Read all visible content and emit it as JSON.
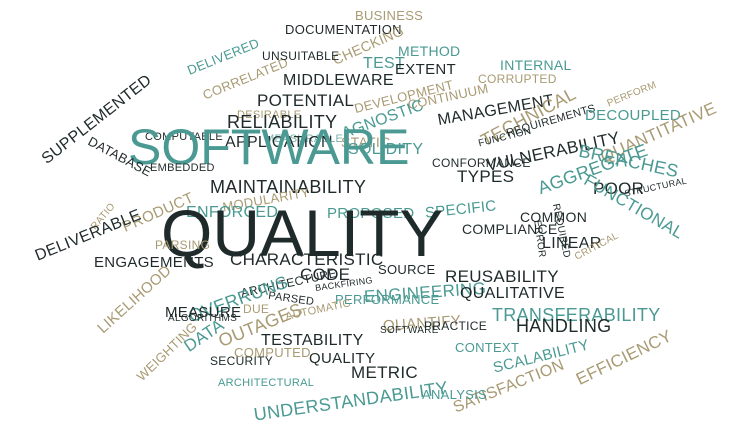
{
  "palette": {
    "teal": "#4a9a93",
    "dark": "#1f2a2a",
    "tan": "#a89a72",
    "light": "#79b3ad"
  },
  "words": [
    {
      "id": "w0",
      "text": "BUSINESS",
      "color": "tan"
    },
    {
      "id": "w1",
      "text": "DOCUMENTATION",
      "color": "dark"
    },
    {
      "id": "w2",
      "text": "CHECKING",
      "color": "tan"
    },
    {
      "id": "w3",
      "text": "DELIVERED",
      "color": "teal"
    },
    {
      "id": "w4",
      "text": "CORRELATED",
      "color": "tan"
    },
    {
      "id": "w5",
      "text": "UNSUITABLE",
      "color": "dark"
    },
    {
      "id": "w6",
      "text": "METHOD",
      "color": "teal"
    },
    {
      "id": "w7",
      "text": "TEST",
      "color": "teal"
    },
    {
      "id": "w8",
      "text": "EXTENT",
      "color": "dark"
    },
    {
      "id": "w9",
      "text": "INTERNAL",
      "color": "teal"
    },
    {
      "id": "w10",
      "text": "MIDDLEWARE",
      "color": "dark"
    },
    {
      "id": "w11",
      "text": "CORRUPTED",
      "color": "tan"
    },
    {
      "id": "w12",
      "text": "POTENTIAL",
      "color": "dark"
    },
    {
      "id": "w13",
      "text": "DEVELOPMENT",
      "color": "tan"
    },
    {
      "id": "w14",
      "text": "CONTINUUM",
      "color": "tan"
    },
    {
      "id": "w15",
      "text": "DESIRABLE",
      "color": "tan"
    },
    {
      "id": "w16",
      "text": "MANAGEMENT",
      "color": "dark"
    },
    {
      "id": "w17",
      "text": "PERFORM",
      "color": "tan"
    },
    {
      "id": "w18",
      "text": "RELIABILITY",
      "color": "dark"
    },
    {
      "id": "w19",
      "text": "SUPPLEMENTED",
      "color": "dark"
    },
    {
      "id": "w20",
      "text": "COMPUTABLE",
      "color": "dark"
    },
    {
      "id": "w21",
      "text": "MEASURABLE",
      "color": "light"
    },
    {
      "id": "w22",
      "text": "STATIC",
      "color": "tan"
    },
    {
      "id": "w23",
      "text": "AGNOSTIC",
      "color": "teal"
    },
    {
      "id": "w24",
      "text": "TECHNICAL",
      "color": "tan"
    },
    {
      "id": "w25",
      "text": "REQUIREMENTS",
      "color": "dark"
    },
    {
      "id": "w26",
      "text": "DECOUPLED",
      "color": "teal"
    },
    {
      "id": "w27",
      "text": "APPLICATION",
      "color": "dark"
    },
    {
      "id": "w28",
      "text": "SOLIDITY",
      "color": "teal"
    },
    {
      "id": "w29",
      "text": "FUNCTION",
      "color": "dark"
    },
    {
      "id": "w30",
      "text": "VULNERABILITY",
      "color": "dark"
    },
    {
      "id": "w31",
      "text": "QUANTITATIVE",
      "color": "tan"
    },
    {
      "id": "w32",
      "text": "SOFTWARE",
      "color": "teal"
    },
    {
      "id": "w33",
      "text": "CONFORMANCE",
      "color": "dark"
    },
    {
      "id": "w34",
      "text": "DATABASE",
      "color": "dark"
    },
    {
      "id": "w35",
      "text": "EMBEDDED",
      "color": "dark"
    },
    {
      "id": "w36",
      "text": "TYPES",
      "color": "dark"
    },
    {
      "id": "w37",
      "text": "BREACHES",
      "color": "teal"
    },
    {
      "id": "w38",
      "text": "AGGREGATE",
      "color": "teal"
    },
    {
      "id": "w39",
      "text": "MAINTAINABILITY",
      "color": "dark"
    },
    {
      "id": "w40",
      "text": "MODULARITY",
      "color": "tan"
    },
    {
      "id": "w41",
      "text": "POOR",
      "color": "dark"
    },
    {
      "id": "w42",
      "text": "STRUCTURAL",
      "color": "dark"
    },
    {
      "id": "w43",
      "text": "PRODUCT",
      "color": "tan"
    },
    {
      "id": "w44",
      "text": "ENFORCED",
      "color": "teal"
    },
    {
      "id": "w45",
      "text": "PROPOSED",
      "color": "teal"
    },
    {
      "id": "w46",
      "text": "SPECIFIC",
      "color": "teal"
    },
    {
      "id": "w47",
      "text": "FUNCTIONAL",
      "color": "teal"
    },
    {
      "id": "w48",
      "text": "COMMON",
      "color": "dark"
    },
    {
      "id": "w49",
      "text": "QUALITY",
      "color": "dark"
    },
    {
      "id": "w50",
      "text": "COMPLIANCE",
      "color": "dark"
    },
    {
      "id": "w51",
      "text": "RATIO",
      "color": "tan"
    },
    {
      "id": "w52",
      "text": "DELIVERABLE",
      "color": "dark"
    },
    {
      "id": "w53",
      "text": "ERROR",
      "color": "dark"
    },
    {
      "id": "w54",
      "text": "REQUIRED",
      "color": "dark"
    },
    {
      "id": "w55",
      "text": "LINEAR",
      "color": "dark"
    },
    {
      "id": "w56",
      "text": "CRITICAL",
      "color": "tan"
    },
    {
      "id": "w57",
      "text": "PARSING",
      "color": "tan"
    },
    {
      "id": "w58",
      "text": "CHARACTERISTIC",
      "color": "dark"
    },
    {
      "id": "w59",
      "text": "ENGAGEMENTS",
      "color": "dark"
    },
    {
      "id": "w60",
      "text": "CODE",
      "color": "dark"
    },
    {
      "id": "w61",
      "text": "SOURCE",
      "color": "dark"
    },
    {
      "id": "w62",
      "text": "REUSABILITY",
      "color": "dark"
    },
    {
      "id": "w63",
      "text": "LIKELIHOOD",
      "color": "tan"
    },
    {
      "id": "w64",
      "text": "ARCHITECTURE",
      "color": "dark"
    },
    {
      "id": "w65",
      "text": "ENGINEERING",
      "color": "teal"
    },
    {
      "id": "w66",
      "text": "QUALITATIVE",
      "color": "dark"
    },
    {
      "id": "w67",
      "text": "OVERRUNS",
      "color": "teal"
    },
    {
      "id": "w68",
      "text": "PARSED",
      "color": "dark"
    },
    {
      "id": "w69",
      "text": "BACKFIRING",
      "color": "dark"
    },
    {
      "id": "w70",
      "text": "PERFORMANCE",
      "color": "teal"
    },
    {
      "id": "w71",
      "text": "TRANSFERABILITY",
      "color": "teal"
    },
    {
      "id": "w72",
      "text": "MEASURE",
      "color": "dark"
    },
    {
      "id": "w73",
      "text": "ALGORITHMS",
      "color": "dark"
    },
    {
      "id": "w74",
      "text": "OUTAGES",
      "color": "tan"
    },
    {
      "id": "w75",
      "text": "DUE",
      "color": "tan"
    },
    {
      "id": "w76",
      "text": "AUTOMATIC",
      "color": "tan"
    },
    {
      "id": "w77",
      "text": "QUANTIFY",
      "color": "tan"
    },
    {
      "id": "w78",
      "text": "PRACTICE",
      "color": "dark"
    },
    {
      "id": "w79",
      "text": "HANDLING",
      "color": "dark"
    },
    {
      "id": "w80",
      "text": "DATA",
      "color": "teal"
    },
    {
      "id": "w81",
      "text": "SOFTWARE",
      "color": "dark"
    },
    {
      "id": "w82",
      "text": "TESTABILITY",
      "color": "dark"
    },
    {
      "id": "w83",
      "text": "CONTEXT",
      "color": "teal"
    },
    {
      "id": "w84",
      "text": "SCALABILITY",
      "color": "teal"
    },
    {
      "id": "w85",
      "text": "WEIGHTING",
      "color": "tan"
    },
    {
      "id": "w86",
      "text": "COMPUTED",
      "color": "tan"
    },
    {
      "id": "w87",
      "text": "EFFICIENCY",
      "color": "tan"
    },
    {
      "id": "w88",
      "text": "SECURITY",
      "color": "dark"
    },
    {
      "id": "w89",
      "text": "QUALITY",
      "color": "dark"
    },
    {
      "id": "w90",
      "text": "METRIC",
      "color": "dark"
    },
    {
      "id": "w91",
      "text": "SATISFACTION",
      "color": "tan"
    },
    {
      "id": "w92",
      "text": "ARCHITECTURAL",
      "color": "teal"
    },
    {
      "id": "w93",
      "text": "UNDERSTANDABILITY",
      "color": "teal"
    },
    {
      "id": "w94",
      "text": "ANALYSIS",
      "color": "teal"
    }
  ]
}
